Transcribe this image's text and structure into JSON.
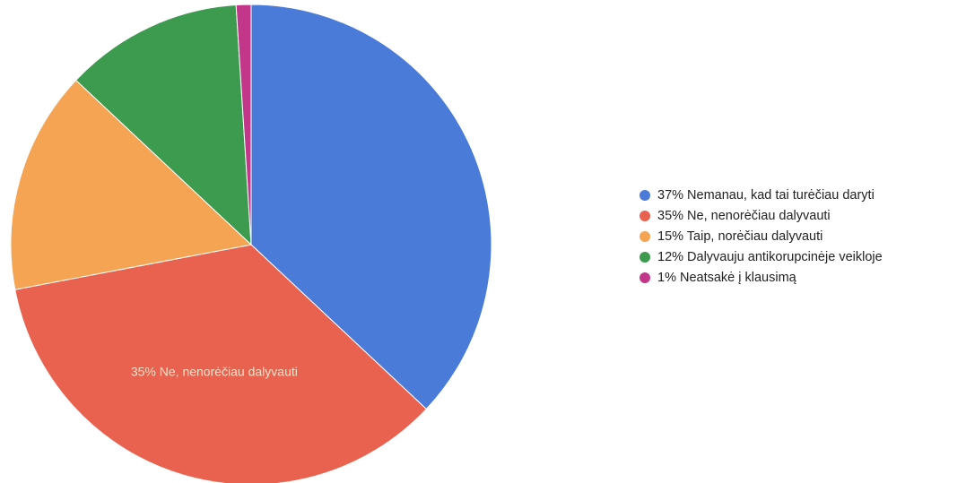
{
  "chart_data": {
    "type": "pie",
    "slices": [
      {
        "label": "37% Nemanau, kad tai turėčiau daryti",
        "value": 37,
        "color": "#4a7bd8"
      },
      {
        "label": "35% Ne, nenorėčiau dalyvauti",
        "value": 35,
        "color": "#e8624f"
      },
      {
        "label": "15% Taip, norėčiau dalyvauti",
        "value": 15,
        "color": "#f4a452"
      },
      {
        "label": "12% Dalyvauju antikorupcinėje veikloje",
        "value": 12,
        "color": "#3d9b4f"
      },
      {
        "label": "1% Neatsakė į klausimą",
        "value": 1,
        "color": "#c2378a"
      }
    ],
    "slice_labels": [
      {
        "slice": 1,
        "text": "35% Ne, nenorėčiau dalyvauti"
      }
    ],
    "legend_position": "right"
  }
}
